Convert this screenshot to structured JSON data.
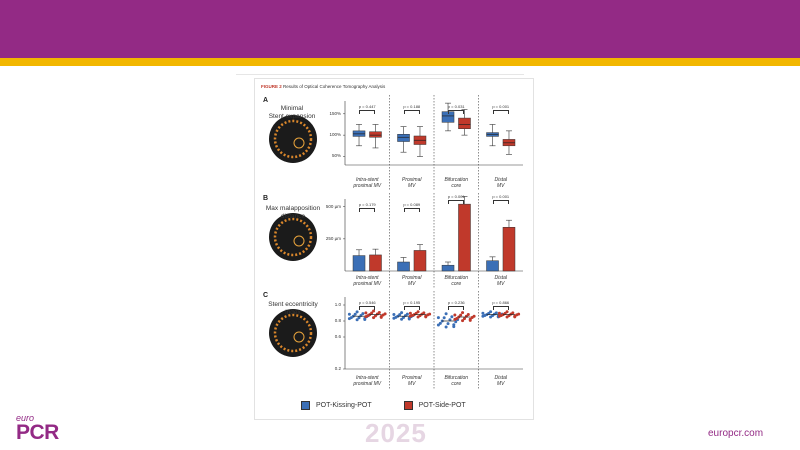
{
  "slide": {
    "figure_title_label": "FIGURE 2",
    "figure_title_text": "Results of Optical Coherence Tomography Analysis",
    "footer_brand_top": "euro",
    "footer_brand_main": "PCR",
    "footer_year": "2025",
    "footer_url": "europcr.com",
    "colors": {
      "header": "#932a85",
      "stripe": "#f2b700",
      "blue": "#3b6fb6",
      "red": "#c0392b"
    }
  },
  "legend": {
    "blue_label": "POT-Kissing-POT",
    "red_label": "POT-Side-POT"
  },
  "categories": [
    [
      "Intra-stent",
      "proximal MV"
    ],
    [
      "Proximal",
      "MV"
    ],
    [
      "Bifurcation",
      "core"
    ],
    [
      "Distal",
      "MV"
    ]
  ],
  "panels": {
    "a": {
      "letter": "A",
      "label_line1": "Minimal",
      "label_line2": "Stent expansion"
    },
    "b": {
      "letter": "B",
      "label_line1": "Max malapposition",
      "label_line2": "distance"
    },
    "c": {
      "letter": "C",
      "label_line1": "Stent eccentricity",
      "label_line2": "index"
    }
  },
  "chart_data": [
    {
      "type": "box",
      "panel": "A",
      "title": "Minimal Stent expansion",
      "categories": [
        "Intra-stent proximal MV",
        "Proximal MV",
        "Bifurcation core",
        "Distal MV"
      ],
      "yticks": [
        "150%",
        "100%",
        "50%"
      ],
      "ylim": [
        30,
        180
      ],
      "p_values": [
        "p = 0.447",
        "p = 0.188",
        "p = 0.031",
        "p = 0.001"
      ],
      "series": [
        {
          "name": "POT-Kissing-POT",
          "boxes": [
            [
              75,
              97,
              103,
              110,
              125
            ],
            [
              60,
              85,
              95,
              102,
              120
            ],
            [
              110,
              130,
              145,
              155,
              175
            ],
            [
              75,
              97,
              102,
              106,
              125
            ]
          ]
        },
        {
          "name": "POT-Side-POT",
          "boxes": [
            [
              70,
              95,
              100,
              108,
              125
            ],
            [
              50,
              78,
              88,
              98,
              120
            ],
            [
              100,
              115,
              125,
              140,
              160
            ],
            [
              55,
              75,
              82,
              90,
              110
            ]
          ]
        }
      ]
    },
    {
      "type": "bar",
      "panel": "B",
      "title": "Max malapposition distance",
      "categories": [
        "Intra-stent proximal MV",
        "Proximal MV",
        "Bifurcation core",
        "Distal MV"
      ],
      "yticks": [
        "500 µm",
        "250 µm"
      ],
      "ylim": [
        0,
        560
      ],
      "p_values": [
        "p = 0.179",
        "p = 0.089",
        "p = 0.001",
        "p = 0.001"
      ],
      "series": [
        {
          "name": "POT-Kissing-POT",
          "values": [
            120,
            70,
            45,
            80
          ],
          "errors": [
            45,
            35,
            25,
            30
          ]
        },
        {
          "name": "POT-Side-POT",
          "values": [
            125,
            160,
            520,
            340
          ],
          "errors": [
            45,
            45,
            60,
            55
          ]
        }
      ]
    },
    {
      "type": "scatter",
      "panel": "C",
      "title": "Stent eccentricity index",
      "categories": [
        "Intra-stent proximal MV",
        "Proximal MV",
        "Bifurcation core",
        "Distal MV"
      ],
      "yticks": [
        "1.0",
        "0.8",
        "0.6",
        "0.2"
      ],
      "ylim": [
        0.2,
        1.1
      ],
      "p_values": [
        "p = 0.546",
        "p = 0.195",
        "p = 0.236",
        "p = 0.866"
      ],
      "series": [
        {
          "name": "POT-Kissing-POT",
          "centers": [
            0.86,
            0.86,
            0.8,
            0.88
          ],
          "spread": [
            0.12,
            0.1,
            0.2,
            0.08
          ]
        },
        {
          "name": "POT-Side-POT",
          "centers": [
            0.88,
            0.88,
            0.85,
            0.88
          ],
          "spread": [
            0.1,
            0.08,
            0.12,
            0.08
          ]
        }
      ]
    }
  ]
}
